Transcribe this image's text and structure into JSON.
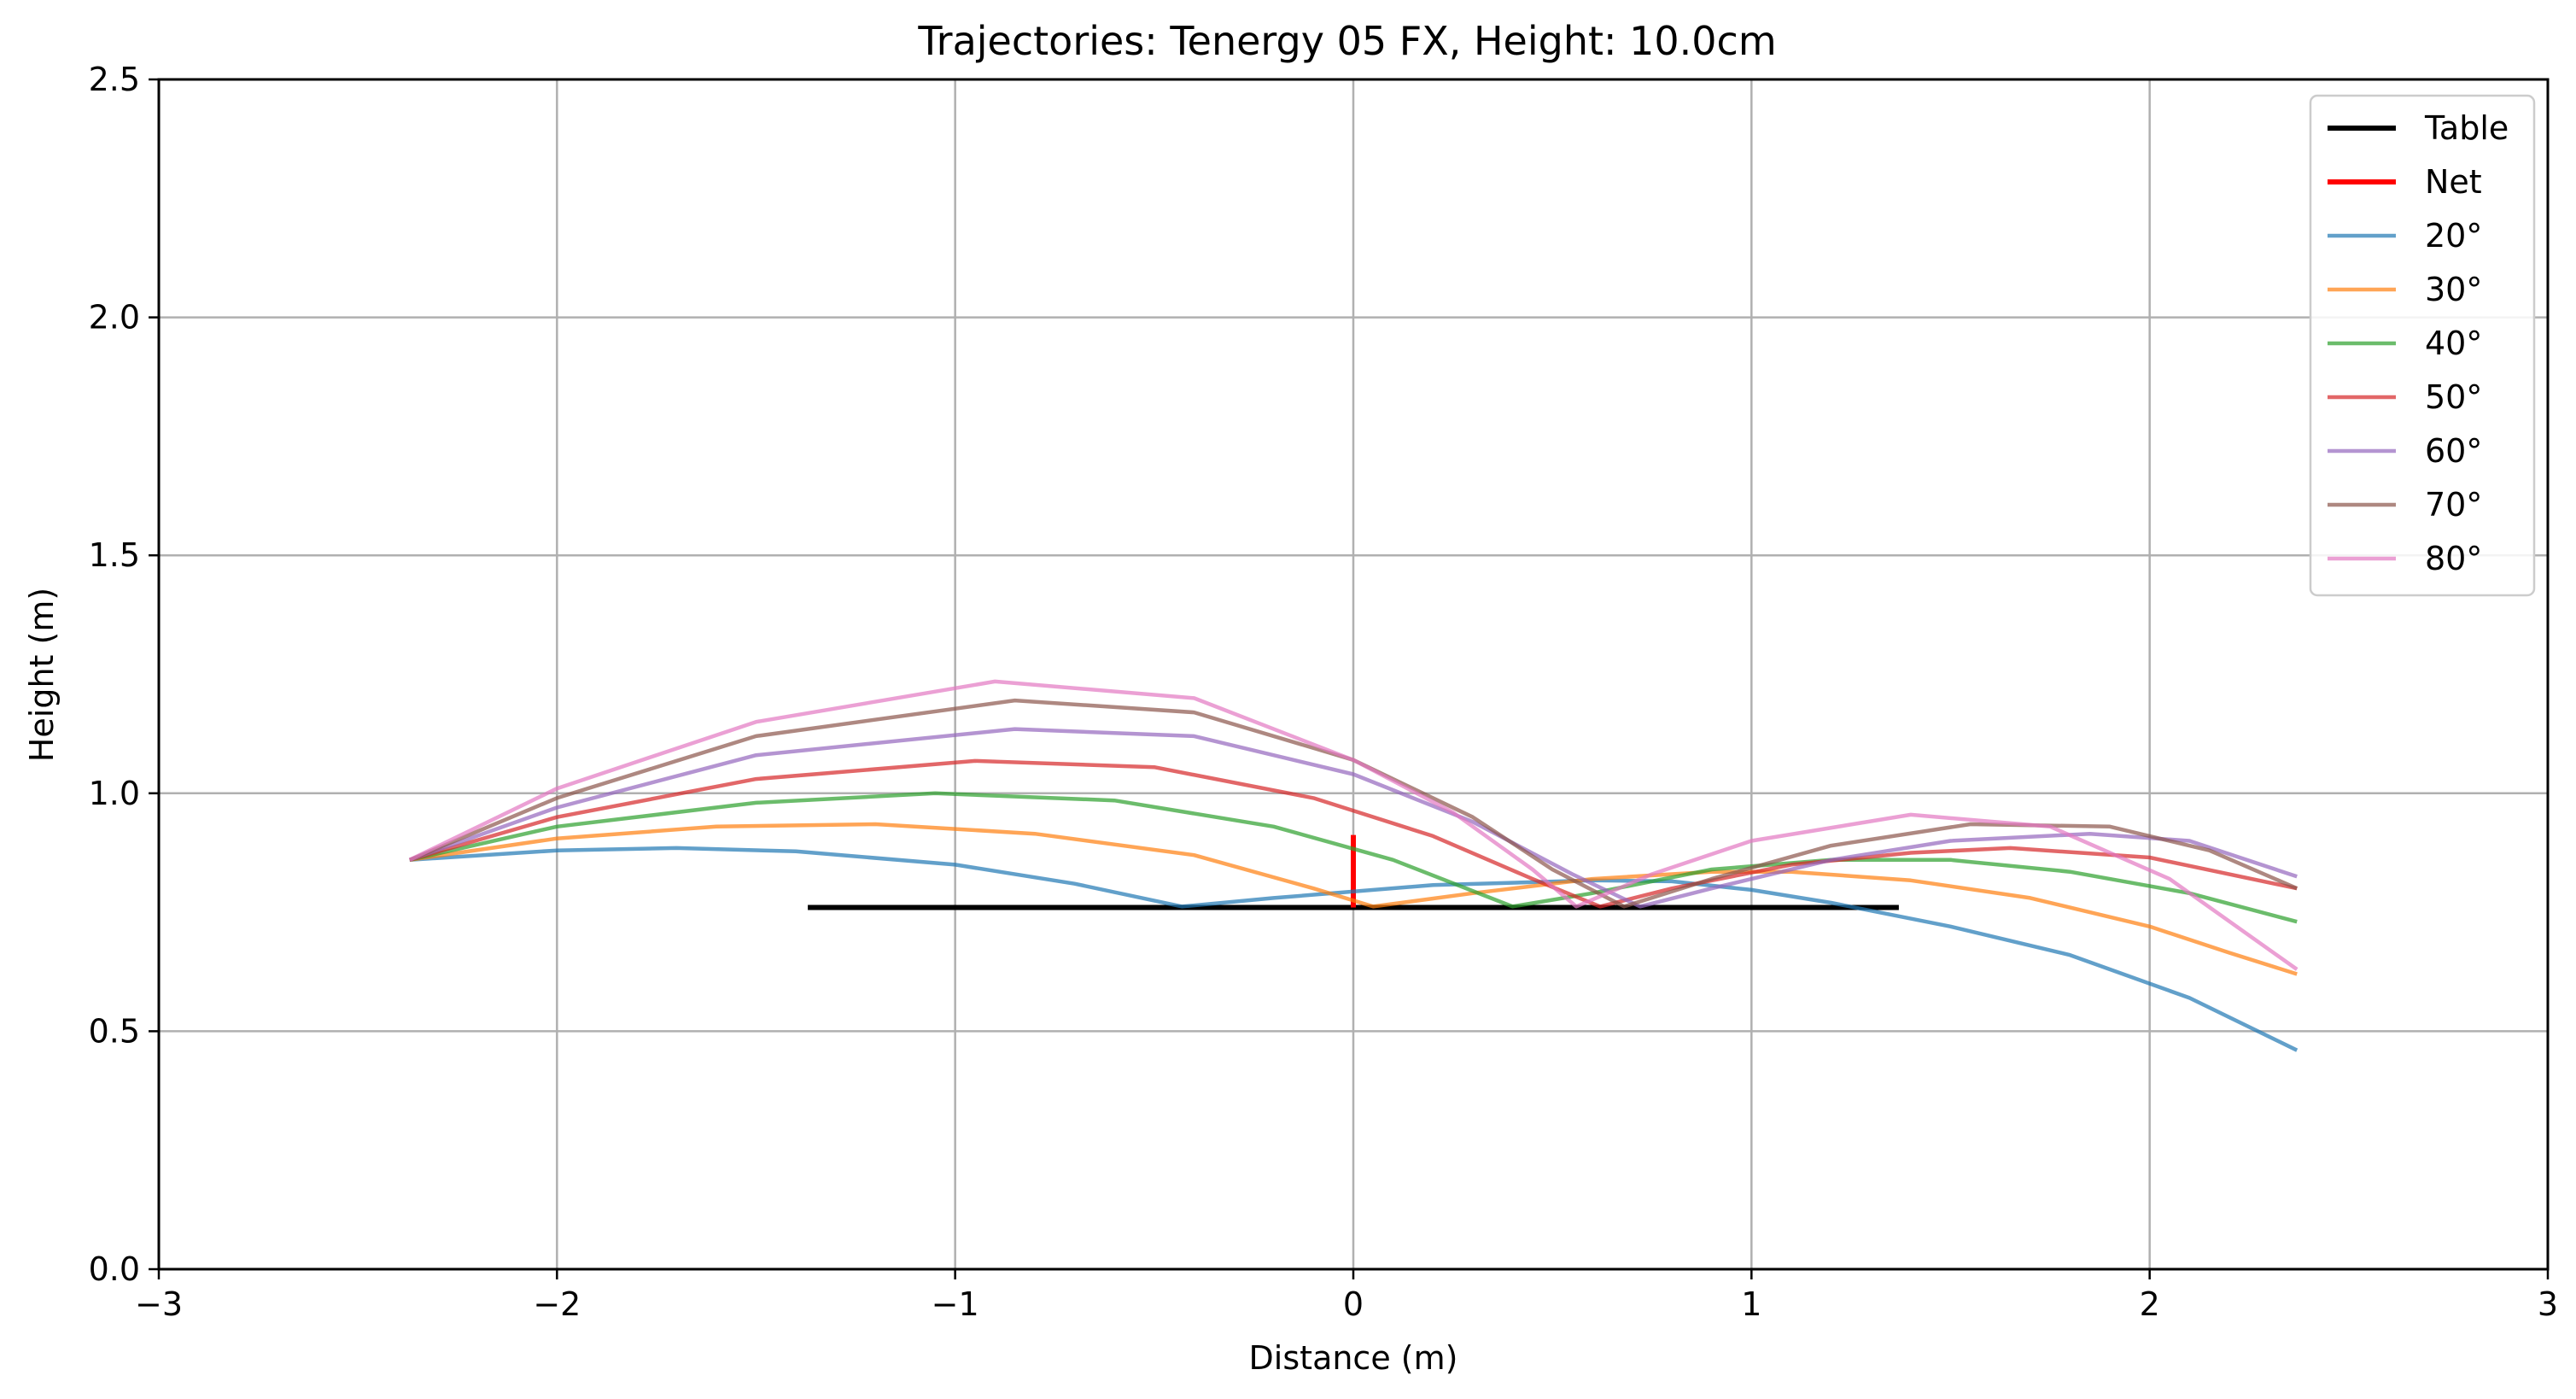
{
  "chart_data": {
    "type": "line",
    "title": "Trajectories: Tenergy 05 FX, Height: 10.0cm",
    "xlabel": "Distance (m)",
    "ylabel": "Height (m)",
    "xlim": [
      -3,
      3
    ],
    "ylim": [
      0,
      2.5
    ],
    "xticks": [
      -3,
      -2,
      -1,
      0,
      1,
      2,
      3
    ],
    "xtick_labels": [
      "−3",
      "−2",
      "−1",
      "0",
      "1",
      "2",
      "3"
    ],
    "yticks": [
      0,
      0.5,
      1.0,
      1.5,
      2.0,
      2.5
    ],
    "ytick_labels": [
      "0.0",
      "0.5",
      "1.0",
      "1.5",
      "2.0",
      "2.5"
    ],
    "grid": true,
    "legend_position": "top-right",
    "series": [
      {
        "name": "Table",
        "color": "#000000",
        "width": 6,
        "opacity": 1,
        "x": [
          -1.37,
          1.37
        ],
        "y": [
          0.76,
          0.76
        ]
      },
      {
        "name": "Net",
        "color": "#ff0000",
        "width": 6,
        "opacity": 1,
        "x": [
          0,
          0
        ],
        "y": [
          0.76,
          0.9125
        ]
      },
      {
        "name": "20°",
        "color": "#1f77b4",
        "width": 4.5,
        "opacity": 0.7,
        "x": [
          -2.37,
          -2.0,
          -1.7,
          -1.4,
          -1.0,
          -0.7,
          -0.43,
          -0.2,
          0.2,
          0.6,
          0.8,
          1.0,
          1.2,
          1.5,
          1.8,
          2.1,
          2.37
        ],
        "y": [
          0.86,
          0.88,
          0.885,
          0.878,
          0.85,
          0.81,
          0.762,
          0.78,
          0.807,
          0.817,
          0.815,
          0.797,
          0.77,
          0.72,
          0.66,
          0.57,
          0.46
        ]
      },
      {
        "name": "30°",
        "color": "#ff7f0e",
        "width": 4.5,
        "opacity": 0.7,
        "x": [
          -2.37,
          -2.0,
          -1.6,
          -1.2,
          -0.8,
          -0.4,
          -0.1,
          0.05,
          0.3,
          0.6,
          0.9,
          1.1,
          1.4,
          1.7,
          2.0,
          2.2,
          2.37
        ],
        "y": [
          0.86,
          0.905,
          0.93,
          0.935,
          0.915,
          0.87,
          0.8,
          0.762,
          0.79,
          0.82,
          0.835,
          0.835,
          0.817,
          0.78,
          0.72,
          0.665,
          0.62
        ]
      },
      {
        "name": "40°",
        "color": "#2ca02c",
        "width": 4.5,
        "opacity": 0.7,
        "x": [
          -2.37,
          -2.0,
          -1.5,
          -1.05,
          -0.6,
          -0.2,
          0.1,
          0.4,
          0.6,
          0.9,
          1.2,
          1.5,
          1.8,
          2.1,
          2.37
        ],
        "y": [
          0.86,
          0.93,
          0.98,
          1.0,
          0.985,
          0.93,
          0.86,
          0.762,
          0.79,
          0.84,
          0.86,
          0.86,
          0.835,
          0.79,
          0.73
        ]
      },
      {
        "name": "50°",
        "color": "#d62728",
        "width": 4.5,
        "opacity": 0.7,
        "x": [
          -2.37,
          -2.0,
          -1.5,
          -0.95,
          -0.5,
          -0.1,
          0.2,
          0.45,
          0.62,
          0.8,
          1.1,
          1.4,
          1.65,
          2.0,
          2.37
        ],
        "y": [
          0.86,
          0.95,
          1.03,
          1.068,
          1.055,
          0.99,
          0.91,
          0.82,
          0.762,
          0.8,
          0.85,
          0.875,
          0.885,
          0.865,
          0.8
        ]
      },
      {
        "name": "60°",
        "color": "#9467bd",
        "width": 4.5,
        "opacity": 0.7,
        "x": [
          -2.37,
          -2.0,
          -1.5,
          -0.85,
          -0.4,
          0.0,
          0.3,
          0.55,
          0.72,
          0.9,
          1.2,
          1.5,
          1.85,
          2.1,
          2.37
        ],
        "y": [
          0.86,
          0.97,
          1.08,
          1.135,
          1.12,
          1.04,
          0.94,
          0.83,
          0.762,
          0.8,
          0.86,
          0.9,
          0.915,
          0.9,
          0.825
        ]
      },
      {
        "name": "70°",
        "color": "#8c564b",
        "width": 4.5,
        "opacity": 0.7,
        "x": [
          -2.37,
          -2.0,
          -1.5,
          -0.85,
          -0.4,
          0.0,
          0.3,
          0.5,
          0.68,
          0.9,
          1.2,
          1.55,
          1.9,
          2.15,
          2.37
        ],
        "y": [
          0.86,
          0.99,
          1.12,
          1.195,
          1.17,
          1.07,
          0.95,
          0.84,
          0.762,
          0.82,
          0.89,
          0.935,
          0.93,
          0.88,
          0.8
        ]
      },
      {
        "name": "80°",
        "color": "#e377c2",
        "width": 4.5,
        "opacity": 0.7,
        "x": [
          -2.37,
          -2.0,
          -1.5,
          -0.9,
          -0.4,
          0.0,
          0.25,
          0.45,
          0.56,
          0.75,
          1.0,
          1.4,
          1.75,
          2.05,
          2.37
        ],
        "y": [
          0.86,
          1.01,
          1.15,
          1.235,
          1.2,
          1.07,
          0.96,
          0.84,
          0.762,
          0.83,
          0.9,
          0.955,
          0.93,
          0.82,
          0.63
        ]
      }
    ]
  }
}
